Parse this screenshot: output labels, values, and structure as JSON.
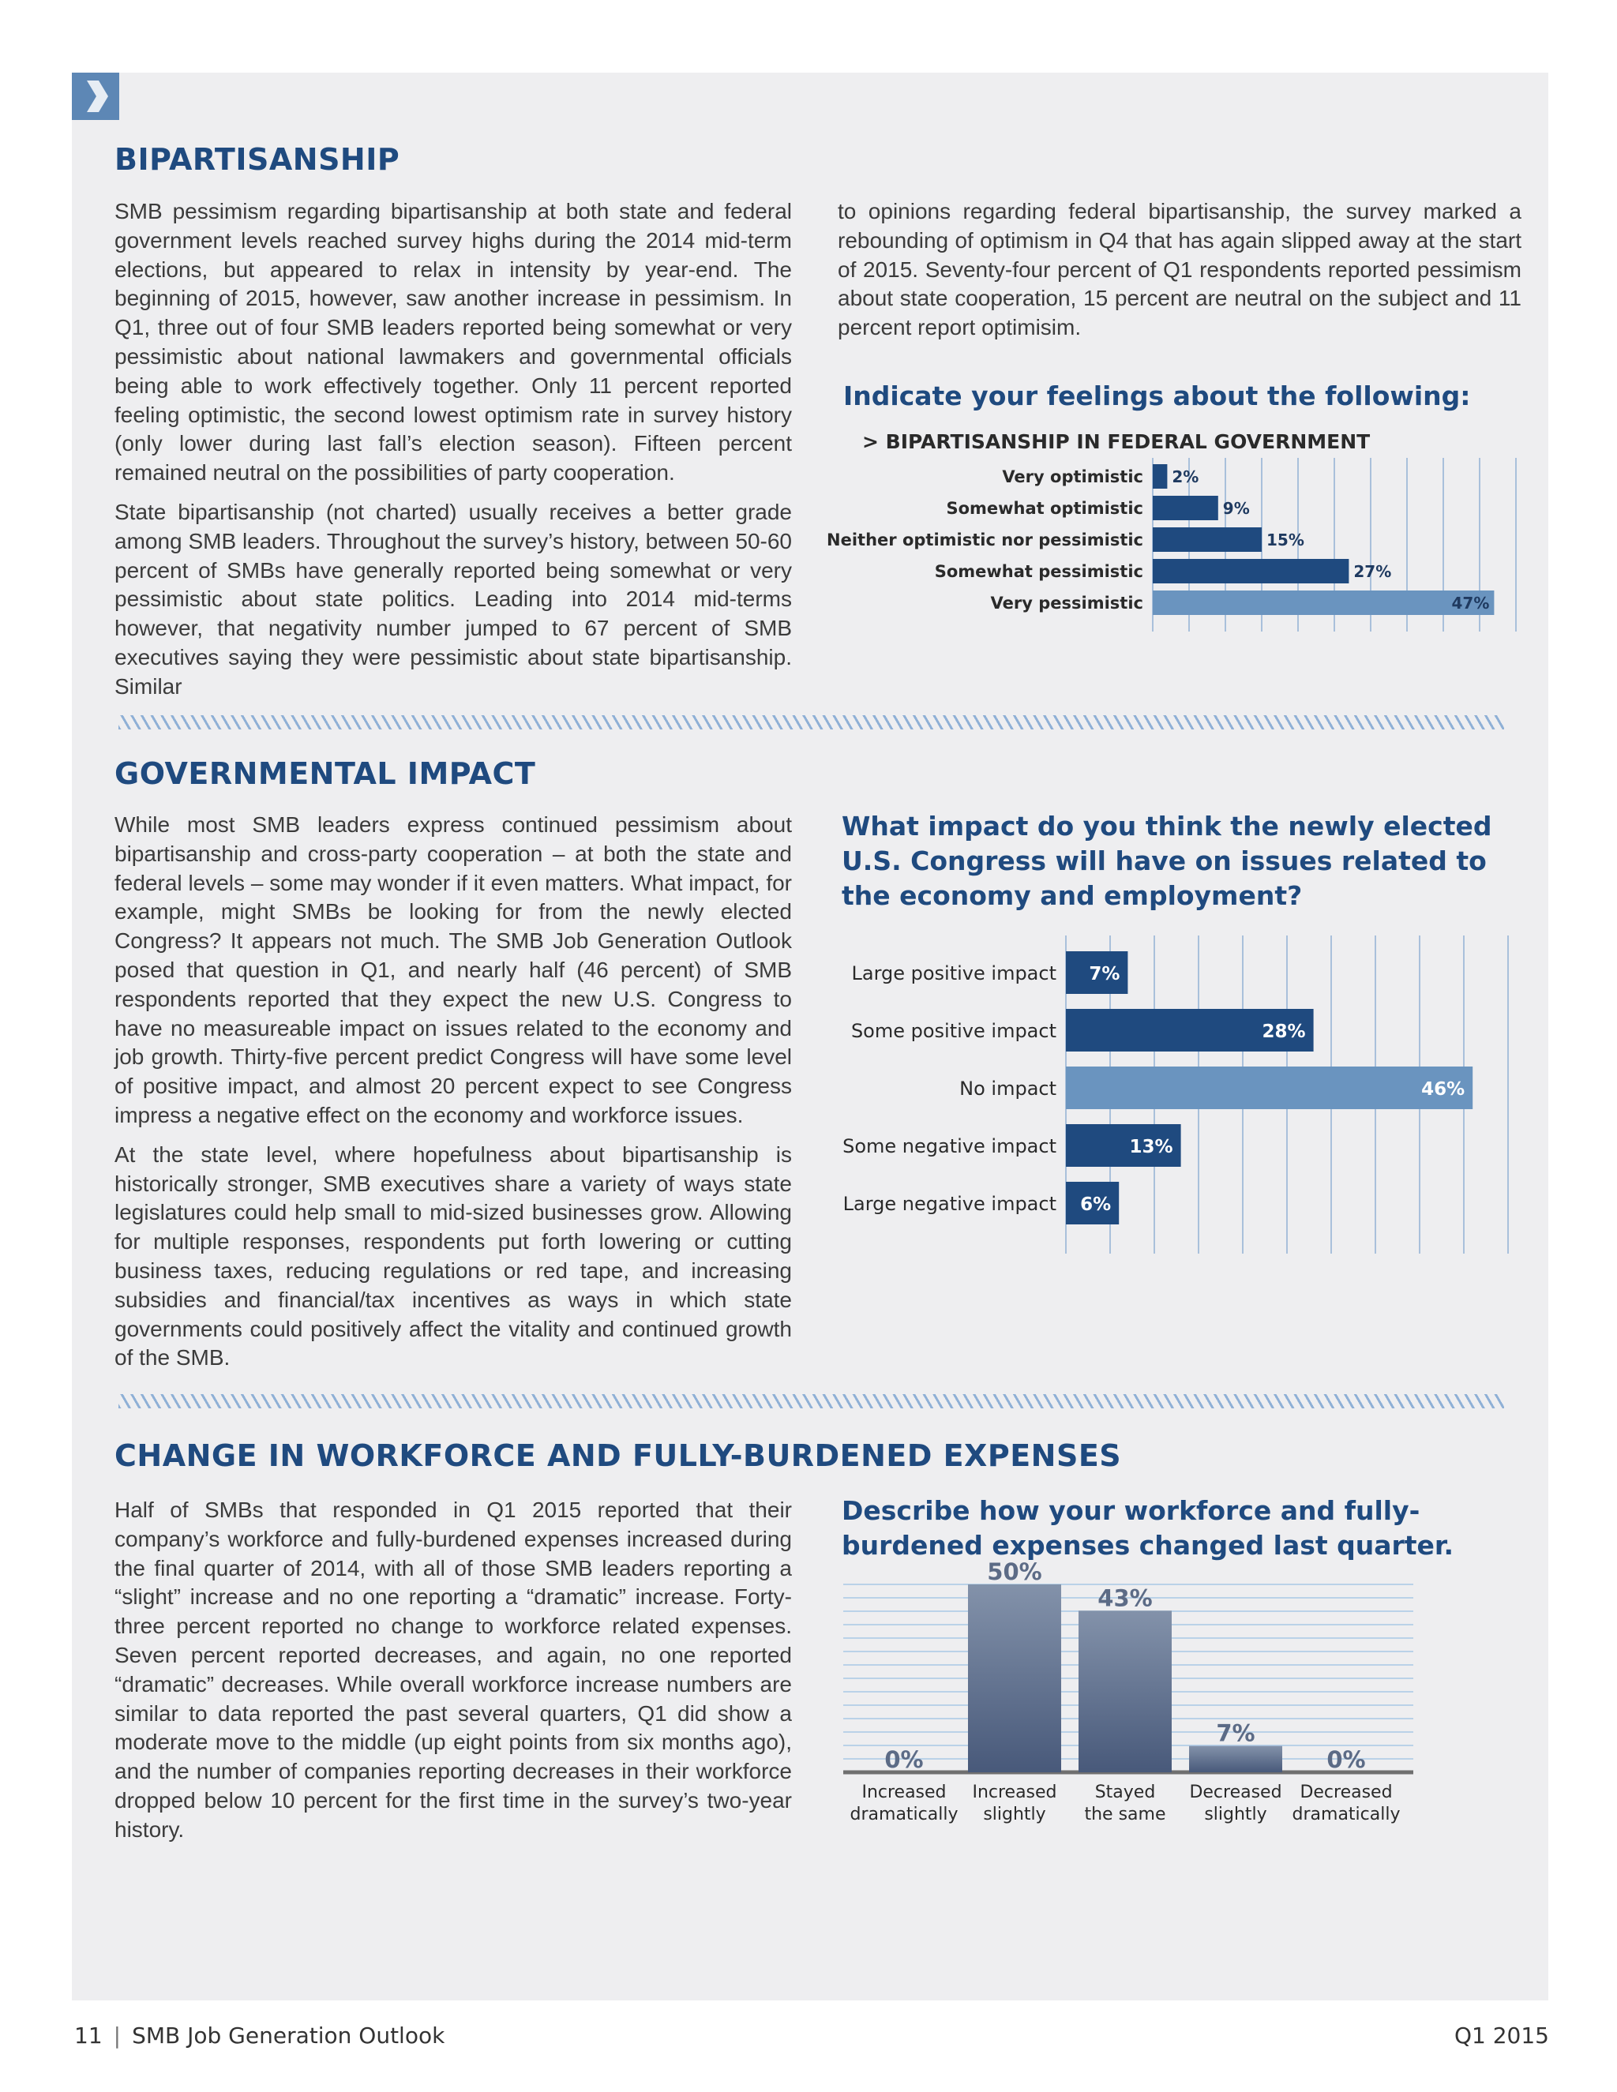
{
  "sections": {
    "bipartisanship": {
      "heading": "BIPARTISANSHIP",
      "left_paragraphs": [
        "SMB pessimism regarding bipartisanship at both state and federal government levels reached survey highs during the 2014 mid-term elections, but appeared to relax in intensity by year-end. The beginning of 2015, however, saw another increase in pessimism. In Q1, three out of four SMB leaders reported being somewhat or very pessimistic about national lawmakers and governmental officials being able to work effectively together. Only 11 percent reported feeling optimistic, the second lowest optimism rate in survey history (only lower during last fall’s election season). Fifteen percent remained neutral on the possibilities of party cooperation.",
        "State bipartisanship (not charted) usually receives a better grade among SMB leaders. Throughout the survey’s history, between 50-60 percent of SMBs have generally reported being somewhat or very pessimistic about state politics. Leading into 2014 mid-terms however, that negativity number jumped to 67 percent of SMB executives saying they were pessimistic about state bipartisanship. Similar"
      ],
      "right_paragraph": "to opinions regarding federal bipartisanship, the survey marked a rebounding of optimism in Q4 that has again slipped away at the start of 2015. Seventy-four percent of Q1 respondents reported pessimism about state cooperation, 15 percent are neutral on the subject and 11 percent report optimisim."
    },
    "governmental_impact": {
      "heading": "GOVERNMENTAL IMPACT",
      "left_paragraphs": [
        "While most SMB leaders express continued pessimism about bipartisanship and cross-party cooperation – at both the state and federal levels – some may wonder if it even matters. What impact, for example, might SMBs be looking for from the newly elected Congress? It appears not much. The SMB Job Generation Outlook posed that question in Q1, and nearly half (46 percent) of SMB respondents reported that they expect the new U.S. Congress to have no measureable impact on issues related to the economy and job growth. Thirty-five percent predict Congress will have some level of positive impact, and almost 20 percent expect to see Congress impress a negative effect on the economy and workforce issues.",
        "At the state level, where hopefulness about bipartisanship is historically stronger, SMB executives share a variety of ways state legislatures could help small to mid-sized businesses grow. Allowing for multiple responses, respondents put forth lowering or cutting business taxes, reducing regulations or red tape, and increasing subsidies and financial/tax incentives as ways in which state governments could positively affect the vitality and continued growth of the SMB."
      ]
    },
    "workforce": {
      "heading": "CHANGE IN WORKFORCE AND FULLY-BURDENED EXPENSES",
      "left_paragraphs": [
        "Half of SMBs that responded in Q1 2015 reported that their company’s workforce and fully-burdened expenses increased during the final quarter of 2014, with all of those SMB leaders reporting a “slight” increase and no one reporting a “dramatic” increase. Forty-three percent reported no change to workforce related expenses. Seven percent reported decreases, and again, no one reported “dramatic” decreases. While overall workforce increase numbers are similar to data reported the past several quarters, Q1 did show a moderate move to the middle (up eight points from six months ago), and the number of companies reporting decreases in their workforce dropped below 10 percent for the first time in the survey’s two-year history."
      ]
    }
  },
  "footer": {
    "page_number": "11",
    "publication": "SMB Job Generation Outlook",
    "quarter": "Q1 2015"
  },
  "icons": {
    "section_marker": "chevron-right-icon"
  },
  "colors": {
    "heading": "#1f4a7f",
    "bar_dark": "#1f4a7f",
    "bar_light": "#6a94bf",
    "panel": "#eeeef0"
  },
  "chart_data": [
    {
      "type": "bar",
      "orientation": "horizontal",
      "title": "Indicate your feelings about the following:",
      "subtitle": "> BIPARTISANSHIP IN FEDERAL GOVERNMENT",
      "categories": [
        "Very optimistic",
        "Somewhat optimistic",
        "Neither optimistic nor pessimistic",
        "Somewhat pessimistic",
        "Very pessimistic"
      ],
      "values": [
        2,
        9,
        15,
        27,
        47
      ],
      "labels": [
        "2%",
        "9%",
        "15%",
        "27%",
        "47%"
      ],
      "highlight_index": 4,
      "xlim": [
        0,
        50
      ],
      "grid": true
    },
    {
      "type": "bar",
      "orientation": "horizontal",
      "title": "What impact do you think the newly elected U.S. Congress will have on issues related to the economy and employment?",
      "categories": [
        "Large positive impact",
        "Some positive impact",
        "No impact",
        "Some negative impact",
        "Large negative impact"
      ],
      "values": [
        7,
        28,
        46,
        13,
        6
      ],
      "labels": [
        "7%",
        "28%",
        "46%",
        "13%",
        "6%"
      ],
      "highlight_index": 2,
      "xlim": [
        0,
        50
      ],
      "grid": true
    },
    {
      "type": "bar",
      "orientation": "vertical",
      "title": "Describe how your workforce and fully-burdened expenses changed last quarter.",
      "categories": [
        [
          "Increased",
          "dramatically"
        ],
        [
          "Increased",
          "slightly"
        ],
        [
          "Stayed",
          "the same"
        ],
        [
          "Decreased",
          "slightly"
        ],
        [
          "Decreased",
          "dramatically"
        ]
      ],
      "values": [
        0,
        50,
        43,
        7,
        0
      ],
      "labels": [
        "0%",
        "50%",
        "43%",
        "7%",
        "0%"
      ],
      "ylim": [
        0,
        50
      ],
      "grid": true
    }
  ]
}
